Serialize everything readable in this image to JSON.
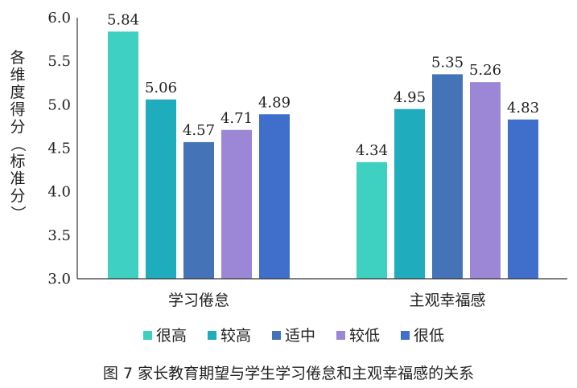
{
  "caption": "图 7   家长教育期望与学生学习倦怠和主观幸福感的关系",
  "chart_data": {
    "type": "bar",
    "title": "",
    "xlabel": "",
    "ylabel": "各维度得分（标准分）",
    "ylim": [
      3.0,
      6.0
    ],
    "yticks": [
      "3.0",
      "3.5",
      "4.0",
      "4.5",
      "5.0",
      "5.5",
      "6.0"
    ],
    "categories": [
      "学习倦怠",
      "主观幸福感"
    ],
    "series": [
      {
        "name": "很高",
        "color": "#3ed0c0",
        "values": [
          5.84,
          4.34
        ],
        "labels": [
          "5.84",
          "4.34"
        ]
      },
      {
        "name": "较高",
        "color": "#1facbc",
        "values": [
          5.06,
          4.95
        ],
        "labels": [
          "5.06",
          "4.95"
        ]
      },
      {
        "name": "适中",
        "color": "#4473b7",
        "values": [
          4.57,
          5.35
        ],
        "labels": [
          "4.57",
          "5.35"
        ]
      },
      {
        "name": "较低",
        "color": "#9b87d6",
        "values": [
          4.71,
          5.26
        ],
        "labels": [
          "4.71",
          "5.26"
        ]
      },
      {
        "name": "很低",
        "color": "#3f6fcb",
        "values": [
          4.89,
          4.83
        ],
        "labels": [
          "4.89",
          "4.83"
        ]
      }
    ],
    "grid": false,
    "legend_position": "bottom"
  }
}
